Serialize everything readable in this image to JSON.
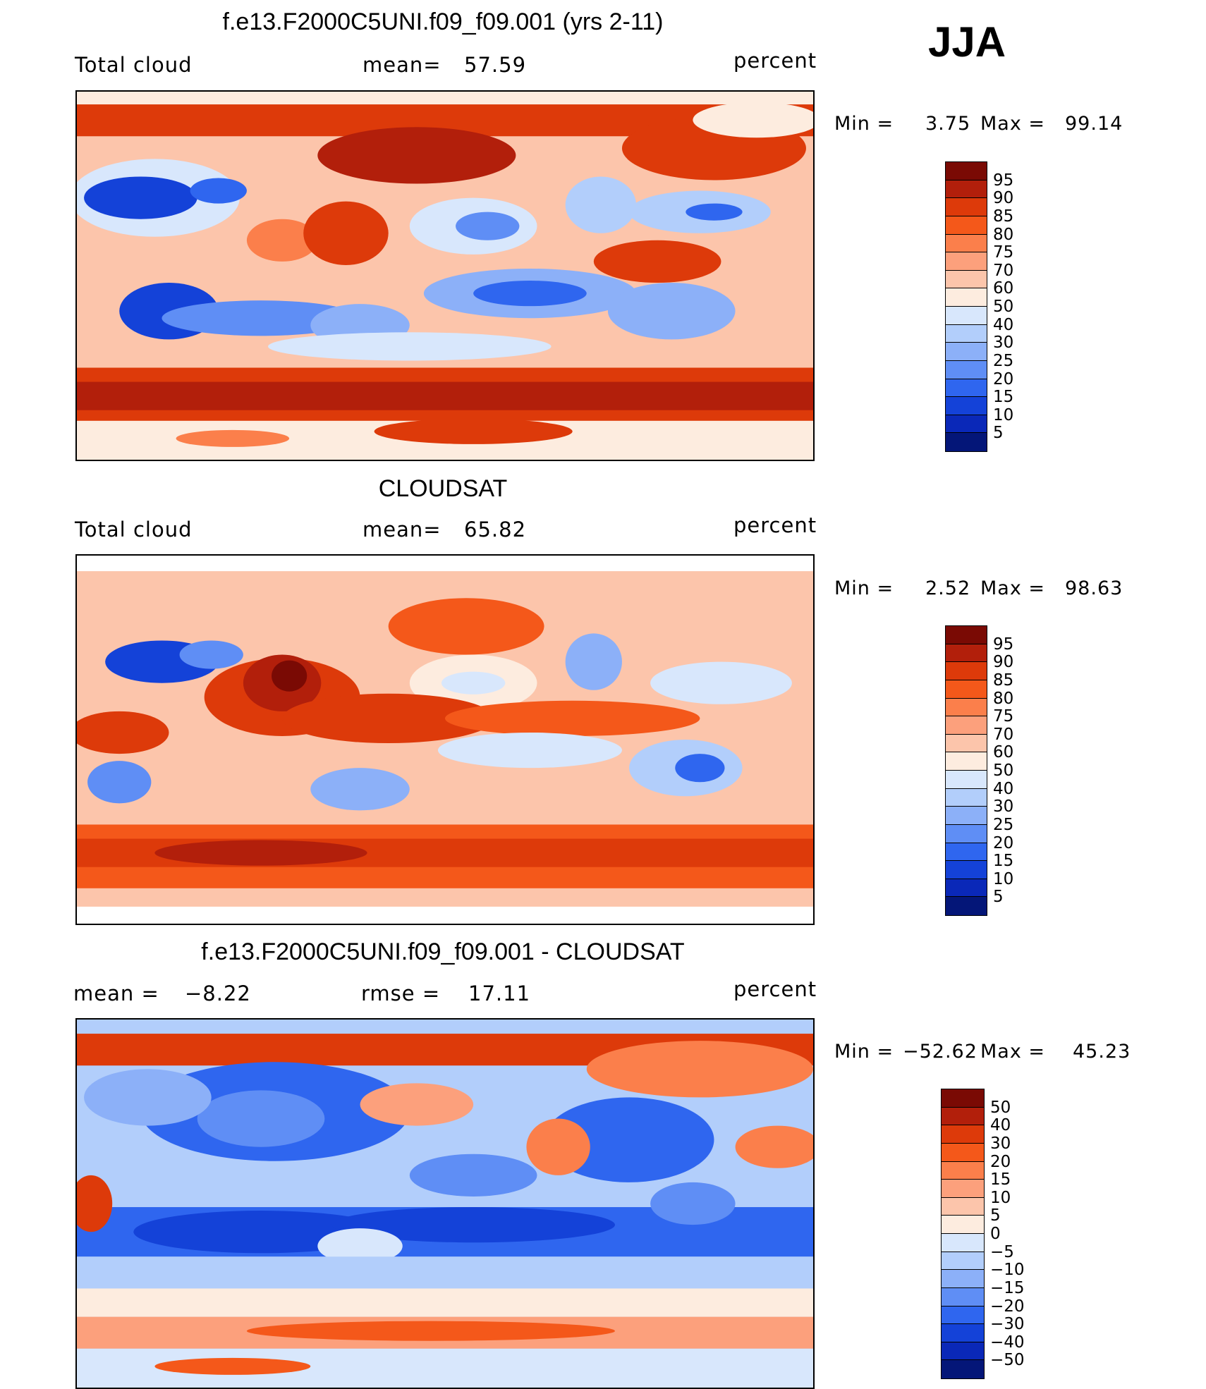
{
  "season": "JJA",
  "units": "percent",
  "panels": [
    {
      "id": "model",
      "title": "f.e13.F2000C5UNI.f09_f09.001 (yrs 2-11)",
      "left_label": "Total cloud",
      "stat_label": "mean=",
      "stat_value": "57.59",
      "units": "percent",
      "min_label": "Min =",
      "min_value": "3.75",
      "max_label": "Max =",
      "max_value": "99.14"
    },
    {
      "id": "obs",
      "title": "CLOUDSAT",
      "left_label": "Total cloud",
      "stat_label": "mean=",
      "stat_value": "65.82",
      "units": "percent",
      "min_label": "Min =",
      "min_value": "2.52",
      "max_label": "Max =",
      "max_value": "98.63"
    },
    {
      "id": "diff",
      "title": "f.e13.F2000C5UNI.f09_f09.001 - CLOUDSAT",
      "left_label": "mean =",
      "left_value": "−8.22",
      "stat_label": "rmse =",
      "stat_value": "17.11",
      "units": "percent",
      "min_label": "Min =",
      "min_value": "−52.62",
      "max_label": "Max =",
      "max_value": "45.23"
    }
  ],
  "colorbars": {
    "absolute": {
      "labels": [
        "95",
        "90",
        "85",
        "80",
        "75",
        "70",
        "60",
        "50",
        "40",
        "30",
        "25",
        "20",
        "15",
        "10",
        "5"
      ],
      "colors": [
        "#7a0a04",
        "#b21f0b",
        "#dd3a0a",
        "#f4581a",
        "#fb7f4b",
        "#fca07c",
        "#fcc5ab",
        "#fdecdf",
        "#d8e7fc",
        "#b2cefb",
        "#8cb0f8",
        "#5f8ef5",
        "#2f66ef",
        "#1442d8",
        "#0a28b8",
        "#041678"
      ]
    },
    "difference": {
      "labels": [
        "50",
        "40",
        "30",
        "20",
        "15",
        "10",
        "5",
        "0",
        "−5",
        "−10",
        "−15",
        "−20",
        "−30",
        "−40",
        "−50"
      ],
      "colors": [
        "#7a0a04",
        "#b21f0b",
        "#dd3a0a",
        "#f4581a",
        "#fb7f4b",
        "#fca07c",
        "#fcc5ab",
        "#fdecdf",
        "#d8e7fc",
        "#b2cefb",
        "#8cb0f8",
        "#5f8ef5",
        "#2f66ef",
        "#1442d8",
        "#0a28b8",
        "#041678"
      ]
    }
  }
}
